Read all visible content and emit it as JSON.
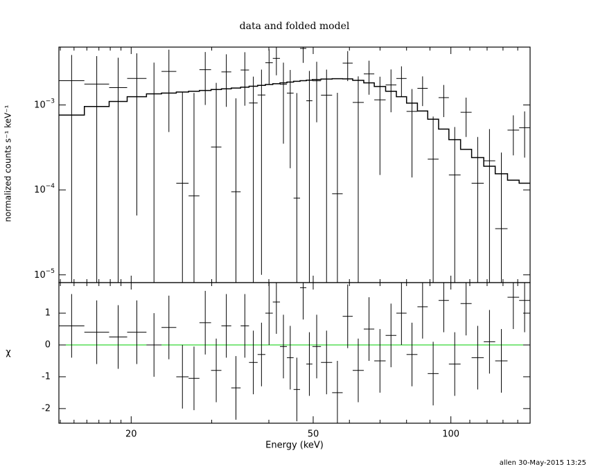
{
  "chart_data": {
    "type": "xspec",
    "title": "data and folded model",
    "xlabel": "Energy (keV)",
    "ylabel": "normalized counts s⁻¹ keV⁻¹",
    "y2label": "χ",
    "footer": "allen 30-May-2015 13:25",
    "xlog": true,
    "ylog": true,
    "xlim": [
      13.9,
      149
    ],
    "ylim": [
      8.1e-06,
      0.0048
    ],
    "y2lim": [
      -2.46,
      1.96
    ],
    "xticks": [
      20,
      50,
      100
    ],
    "xminor": [
      14,
      15,
      16,
      17,
      18,
      19,
      30,
      40,
      60,
      70,
      80,
      90,
      110,
      120,
      130,
      140
    ],
    "yticks": [
      {
        "value": 1e-05,
        "label": "10",
        "exponent": "−5"
      },
      {
        "value": 0.0001,
        "label": "10",
        "exponent": "−4"
      },
      {
        "value": 0.001,
        "label": "10",
        "exponent": "−3"
      }
    ],
    "y2ticks": [
      -2,
      -1,
      0,
      1
    ],
    "color": "#000000",
    "zero_color": "#00cc00",
    "bins": [
      13.9,
      15.8,
      17.9,
      19.6,
      21.6,
      23.3,
      25.1,
      26.7,
      28.2,
      29.9,
      31.5,
      33.1,
      34.7,
      36.2,
      37.8,
      39.3,
      40.8,
      42.3,
      43.8,
      45.3,
      46.8,
      48.3,
      49.8,
      52.0,
      55.0,
      58.0,
      61.0,
      64.5,
      68.0,
      72.0,
      76.0,
      80.0,
      84.5,
      89.0,
      94.0,
      99.0,
      105.0,
      111.0,
      118.0,
      125.0,
      133.0,
      141.0,
      149.0
    ],
    "rate": [
      0.00193,
      0.00176,
      0.0016,
      0.00205,
      0.00135,
      0.00248,
      0.00012,
      8.5e-05,
      0.0026,
      0.00032,
      0.00245,
      9.5e-05,
      0.00258,
      0.001055,
      0.00131,
      0.00314,
      0.003535,
      0.00175,
      0.00138,
      8e-05,
      0.00463,
      0.00112,
      0.001925,
      0.001305,
      9e-05,
      0.00311,
      0.00107,
      0.00232,
      0.00115,
      0.00172,
      0.00205,
      0.00084,
      0.00157,
      0.00023,
      0.00122,
      0.00015,
      0.00082,
      0.00012,
      0.00022,
      3.5e-05,
      0.000505,
      0.00054
    ],
    "rate_err": [
      0.00195,
      0.002,
      0.002,
      0.002,
      0.0018,
      0.002,
      0.0013,
      0.0013,
      0.0016,
      0.0015,
      0.0015,
      0.0011,
      0.0016,
      0.0011,
      0.0013,
      0.0014,
      0.0013,
      0.0014,
      0.0012,
      0.0013,
      0.0015,
      0.0014,
      0.0013,
      0.0013,
      0.0013,
      0.0012,
      0.0011,
      0.001,
      0.001,
      0.0009,
      0.0008,
      0.0007,
      0.0006,
      0.0005,
      0.0005,
      0.0004,
      0.0004,
      0.0003,
      0.0003,
      0.00024,
      0.00025,
      0.0003
    ],
    "model": [
      0.00076,
      0.00096,
      0.0011,
      0.00125,
      0.00135,
      0.00138,
      0.00142,
      0.00145,
      0.00148,
      0.00152,
      0.00155,
      0.00158,
      0.00162,
      0.00166,
      0.0017,
      0.00174,
      0.00178,
      0.00182,
      0.00186,
      0.0019,
      0.00193,
      0.00196,
      0.00199,
      0.00202,
      0.00204,
      0.00203,
      0.00195,
      0.00182,
      0.00165,
      0.00145,
      0.00125,
      0.00105,
      0.00085,
      0.00068,
      0.00052,
      0.00039,
      0.0003,
      0.00024,
      0.00019,
      0.000155,
      0.00013,
      0.00012
    ],
    "chi": [
      0.6,
      0.4,
      0.25,
      0.4,
      0.0,
      0.55,
      -1.0,
      -1.05,
      0.7,
      -0.8,
      0.6,
      -1.35,
      0.6,
      -0.55,
      -0.3,
      1.0,
      1.35,
      -0.05,
      -0.4,
      -1.4,
      1.8,
      -0.6,
      -0.05,
      -0.55,
      -1.5,
      0.9,
      -0.8,
      0.5,
      -0.5,
      0.3,
      1.0,
      -0.3,
      1.2,
      -0.9,
      1.4,
      -0.6,
      1.3,
      -0.4,
      0.1,
      -0.5,
      1.5,
      1.4
    ],
    "chi_err": [
      1,
      1,
      1,
      1,
      1,
      1,
      1,
      1,
      1,
      1,
      1,
      1,
      1,
      1,
      1,
      1,
      1,
      1,
      1,
      1,
      1,
      1,
      1,
      1,
      1,
      1,
      1,
      1,
      1,
      1,
      1,
      1,
      1,
      1,
      1,
      1,
      1,
      1,
      1,
      1,
      1,
      1
    ]
  }
}
